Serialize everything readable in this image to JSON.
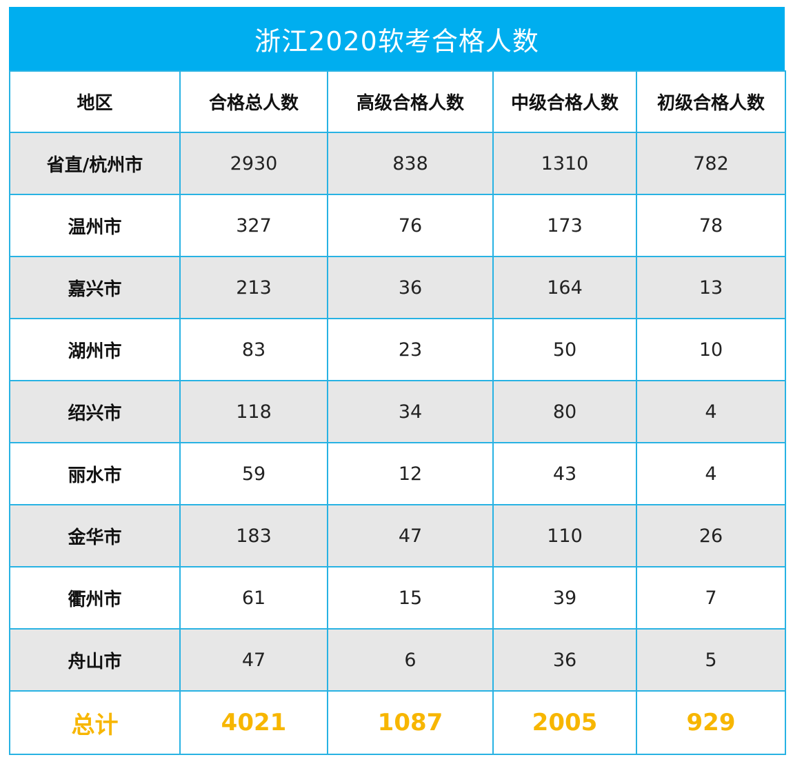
{
  "title": "浙江2020软考合格人数",
  "headers": [
    "地区",
    "合格总人数",
    "高级合格人数",
    "中级合格人数",
    "初级合格人数"
  ],
  "rows": [
    {
      "region": "省直/杭州市",
      "total": "2930",
      "senior": "838",
      "middle": "1310",
      "junior": "782"
    },
    {
      "region": "温州市",
      "total": "327",
      "senior": "76",
      "middle": "173",
      "junior": "78"
    },
    {
      "region": "嘉兴市",
      "total": "213",
      "senior": "36",
      "middle": "164",
      "junior": "13"
    },
    {
      "region": "湖州市",
      "total": "83",
      "senior": "23",
      "middle": "50",
      "junior": "10"
    },
    {
      "region": "绍兴市",
      "total": "118",
      "senior": "34",
      "middle": "80",
      "junior": "4"
    },
    {
      "region": "丽水市",
      "total": "59",
      "senior": "12",
      "middle": "43",
      "junior": "4"
    },
    {
      "region": "金华市",
      "total": "183",
      "senior": "47",
      "middle": "110",
      "junior": "26"
    },
    {
      "region": "衢州市",
      "total": "61",
      "senior": "15",
      "middle": "39",
      "junior": "7"
    },
    {
      "region": "舟山市",
      "total": "47",
      "senior": "6",
      "middle": "36",
      "junior": "5"
    }
  ],
  "summary": {
    "region": "总计",
    "total": "4021",
    "senior": "1087",
    "middle": "2005",
    "junior": "929"
  },
  "colors": {
    "header_bg": "#00aeef",
    "border": "#27b2e3",
    "shade": "#e7e7e7",
    "total_text": "#f7b600"
  }
}
